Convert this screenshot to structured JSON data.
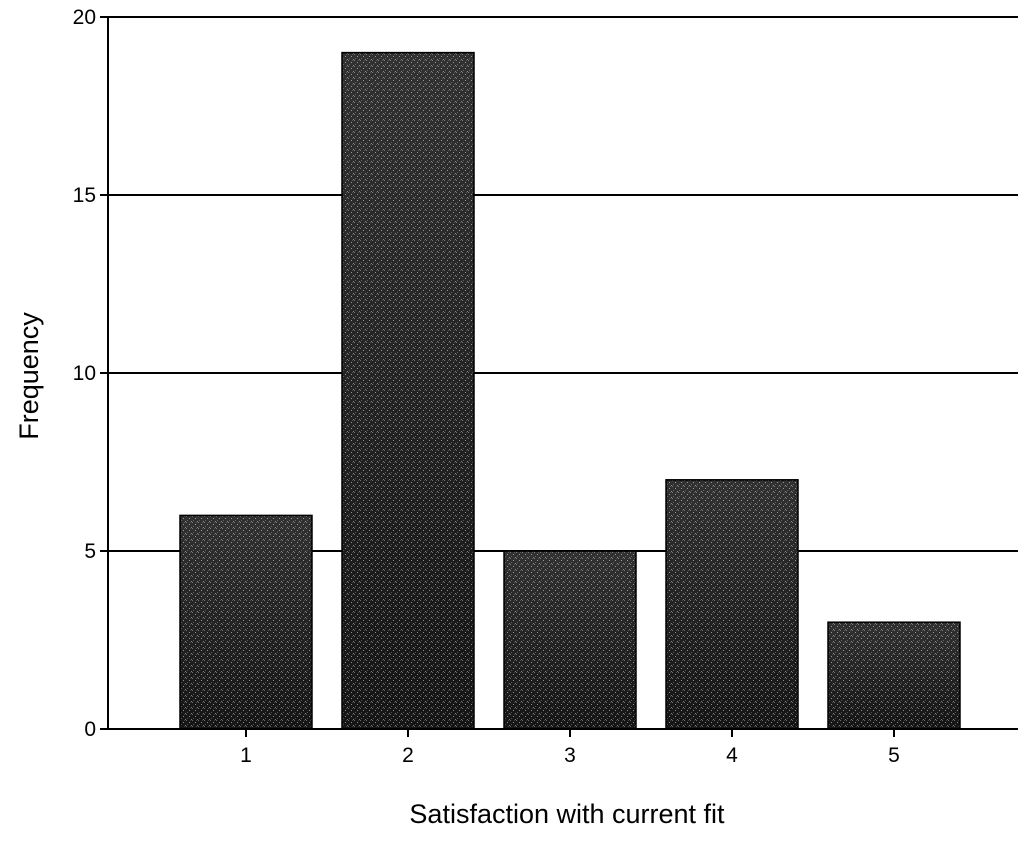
{
  "chart_data": {
    "type": "bar",
    "title": "",
    "xlabel": "Satisfaction with current fit",
    "ylabel": "Frequency",
    "categories": [
      "1",
      "2",
      "3",
      "4",
      "5"
    ],
    "values": [
      6,
      19,
      5,
      7,
      3
    ],
    "ylim": [
      0,
      20
    ],
    "yticks": [
      0,
      5,
      10,
      15,
      20
    ],
    "grid": true,
    "legend": "none",
    "colors": {
      "bar_fill": "#1a1a1a",
      "bar_highlight": "#8a8a8a",
      "bar_edge": "#000000",
      "gridline": "#000000",
      "axis": "#000000"
    }
  }
}
